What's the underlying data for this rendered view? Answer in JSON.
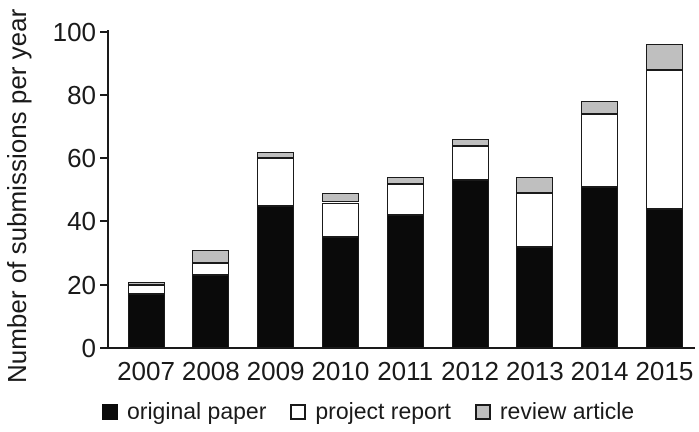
{
  "chart_data": {
    "type": "bar",
    "stacked": true,
    "title": "",
    "ylabel": "Number of submissions per year",
    "xlabel": "",
    "categories": [
      "2007",
      "2008",
      "2009",
      "2010",
      "2011",
      "2012",
      "2013",
      "2014",
      "2015"
    ],
    "series": [
      {
        "name": "original paper",
        "color": "#0a0a0a",
        "values": [
          17,
          23,
          45,
          35,
          42,
          53,
          32,
          51,
          44
        ]
      },
      {
        "name": "project report",
        "color": "#ffffff",
        "values": [
          3,
          4,
          15,
          11,
          10,
          11,
          17,
          23,
          44
        ]
      },
      {
        "name": "review article",
        "color": "#bfbfbf",
        "values": [
          1,
          4,
          2,
          3,
          2,
          2,
          5,
          4,
          8
        ]
      }
    ],
    "totals": [
      21,
      31,
      62,
      49,
      54,
      66,
      54,
      78,
      96
    ],
    "ylim": [
      0,
      100
    ],
    "yticks": [
      0,
      20,
      40,
      60,
      80,
      100
    ],
    "grid": false,
    "legend_position": "bottom",
    "axis_color": "#1a1a1a",
    "segment_border_color": "#1a1a1a",
    "background_color": "#ffffff"
  }
}
